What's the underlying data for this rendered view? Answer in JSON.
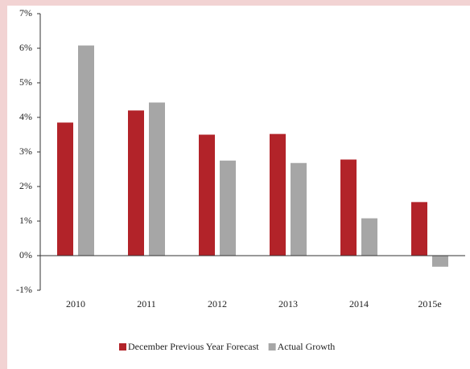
{
  "chart_data": {
    "type": "bar",
    "categories": [
      "2010",
      "2011",
      "2012",
      "2013",
      "2014",
      "2015e"
    ],
    "series": [
      {
        "name": "December Previous Year Forecast",
        "color": "#b22329",
        "values": [
          3.85,
          4.2,
          3.5,
          3.52,
          2.78,
          1.55
        ]
      },
      {
        "name": "Actual Growth",
        "color": "#a6a6a6",
        "values": [
          6.08,
          4.43,
          2.75,
          2.68,
          1.08,
          -0.32
        ]
      }
    ],
    "ylim": [
      -1,
      7
    ],
    "yticks": [
      {
        "value": -1,
        "label": "-1%"
      },
      {
        "value": 0,
        "label": "0%"
      },
      {
        "value": 1,
        "label": "1%"
      },
      {
        "value": 2,
        "label": "2%"
      },
      {
        "value": 3,
        "label": "3%"
      },
      {
        "value": 4,
        "label": "4%"
      },
      {
        "value": 5,
        "label": "5%"
      },
      {
        "value": 6,
        "label": "6%"
      },
      {
        "value": 7,
        "label": "7%"
      }
    ],
    "grid": false,
    "legend": "bottom"
  }
}
